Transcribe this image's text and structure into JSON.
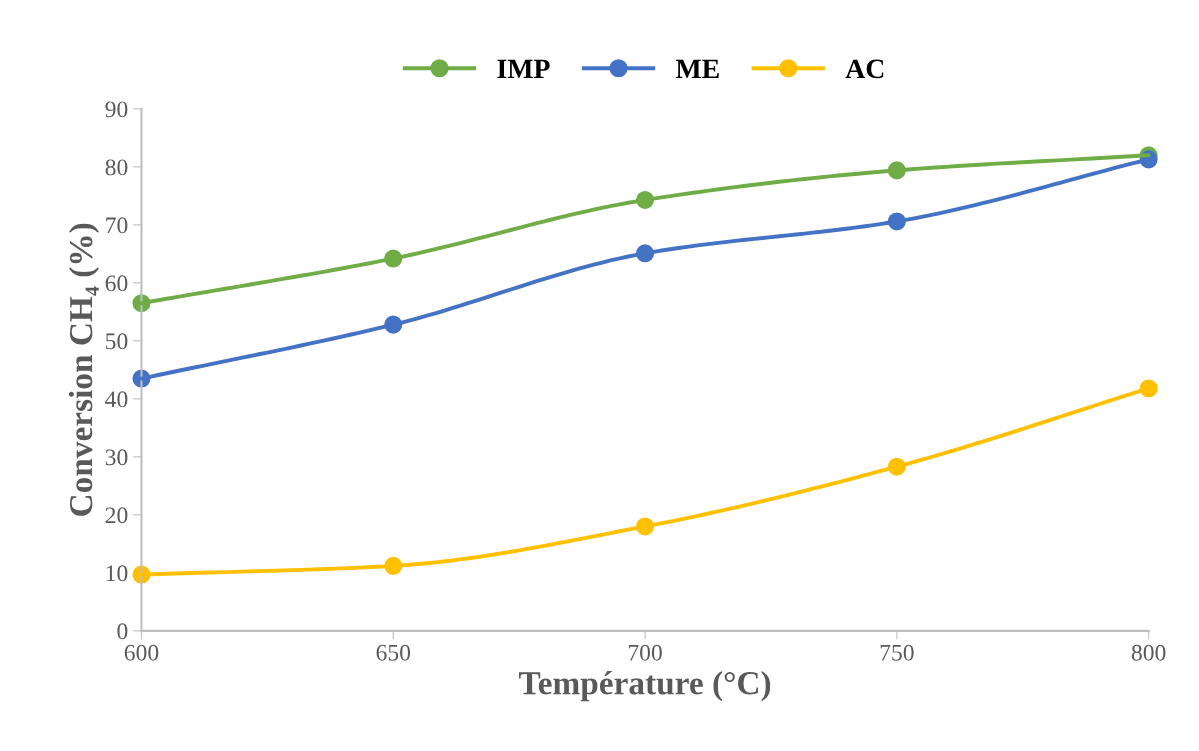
{
  "chart_data": {
    "type": "line",
    "xlabel": "Température (°C)",
    "ylabel": "Conversion CH₄ (%)",
    "x": [
      600,
      650,
      700,
      750,
      800
    ],
    "series": [
      {
        "name": "IMP",
        "color": "#70ad47",
        "values": [
          56.5,
          64.2,
          74.3,
          79.4,
          82.0
        ]
      },
      {
        "name": "ME",
        "color": "#4472c4",
        "values": [
          43.5,
          52.8,
          65.1,
          70.6,
          81.3
        ]
      },
      {
        "name": "AC",
        "color": "#ffc000",
        "values": [
          9.7,
          11.2,
          18.0,
          28.3,
          41.8
        ]
      }
    ],
    "xlim": [
      600,
      800
    ],
    "xticks": [
      600,
      650,
      700,
      750,
      800
    ],
    "ylim": [
      0,
      90
    ],
    "yticks": [
      0,
      10,
      20,
      30,
      40,
      50,
      60,
      70,
      80,
      90
    ],
    "grid": false,
    "legend": "top",
    "marker": "circle",
    "line_style": "solid"
  }
}
